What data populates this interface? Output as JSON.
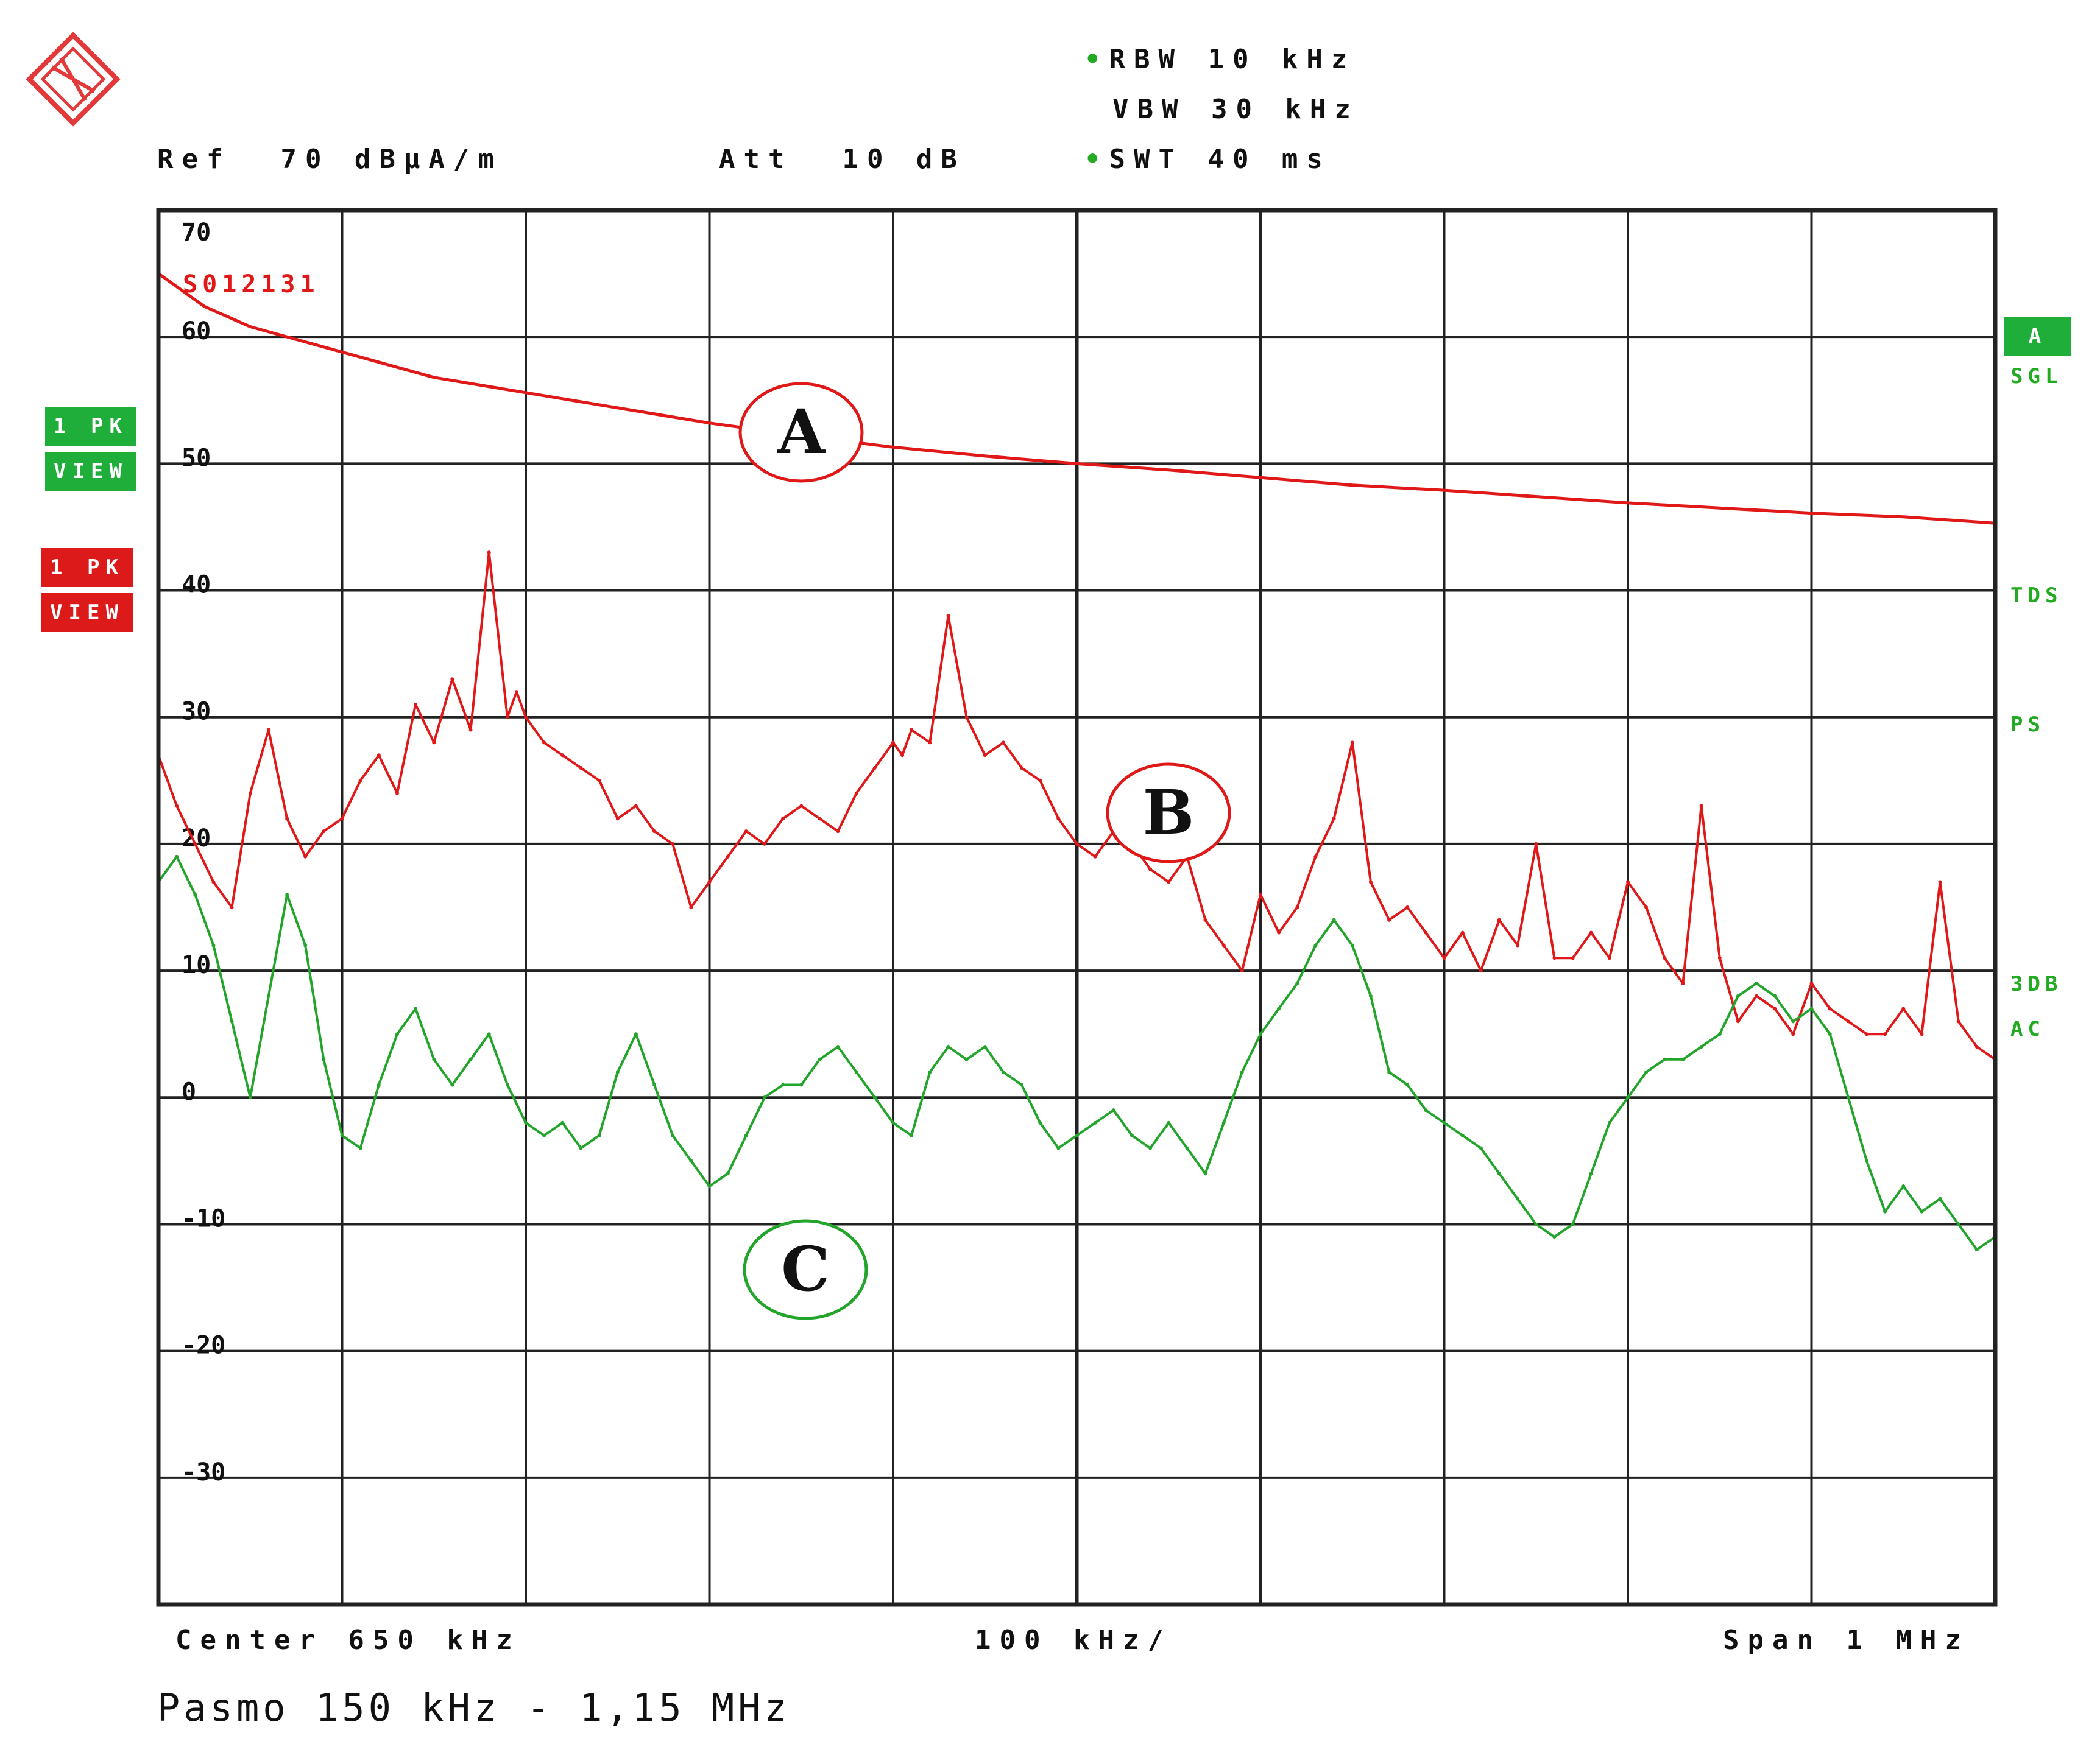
{
  "header": {
    "rbw": "RBW 10 kHz",
    "vbw": "VBW 30 kHz",
    "swt": "SWT 40 ms",
    "ref": "Ref  70 dBµA/m",
    "att": "Att  10 dB"
  },
  "footer": {
    "center": "Center 650 kHz",
    "div": "100 kHz/",
    "span": "Span 1 MHz",
    "caption": "Pasmo 150 kHz - 1,15 MHz"
  },
  "left_badges": {
    "green_line1": "1 PK",
    "green_line2": "VIEW",
    "red_line1": "1 PK",
    "red_line2": "VIEW"
  },
  "right_labels": {
    "a_badge": "A",
    "sgl": "SGL",
    "tds": "TDS",
    "ps": "PS",
    "db3": "3DB",
    "ac": "AC"
  },
  "colors": {
    "red": "#e01818",
    "light_red": "#f07a6a",
    "green": "#22a52a",
    "grid": "#222222",
    "badge_green": "#1fae3a",
    "badge_red": "#dd1a1a"
  },
  "chart_data": {
    "type": "line",
    "x_unit": "kHz",
    "xlim": [
      150,
      1150
    ],
    "ylim": [
      -40,
      70
    ],
    "ylabel": "",
    "xlabel": "",
    "grid": true,
    "y_tick_labels": [
      "70",
      "60",
      "50",
      "40",
      "30",
      "20",
      "10",
      "0",
      "-10",
      "-20",
      "-30"
    ],
    "limit_label": "S012131",
    "annotations": [
      "A",
      "B",
      "C"
    ],
    "series": [
      {
        "color": "#e01818",
        "x": [
          150,
          175,
          200,
          250,
          300,
          350,
          400,
          450,
          500,
          550,
          600,
          650,
          700,
          750,
          800,
          850,
          900,
          950,
          1000,
          1050,
          1100,
          1150
        ],
        "y": [
          65,
          62.4,
          60.8,
          58.8,
          56.8,
          55.6,
          54.4,
          53.2,
          52.2,
          51.3,
          50.6,
          50.0,
          49.5,
          48.9,
          48.3,
          47.9,
          47.4,
          46.9,
          46.5,
          46.1,
          45.8,
          45.3
        ]
      },
      {
        "color": "#e01818",
        "x": [
          150,
          160,
          170,
          180,
          190,
          200,
          210,
          220,
          230,
          240,
          250,
          260,
          270,
          280,
          290,
          300,
          310,
          320,
          330,
          340,
          345,
          350,
          360,
          370,
          380,
          390,
          400,
          410,
          420,
          430,
          440,
          450,
          460,
          470,
          480,
          490,
          500,
          510,
          520,
          530,
          540,
          550,
          555,
          560,
          570,
          580,
          590,
          600,
          610,
          620,
          630,
          640,
          650,
          660,
          670,
          680,
          690,
          700,
          710,
          720,
          730,
          740,
          750,
          760,
          770,
          780,
          790,
          800,
          810,
          820,
          830,
          840,
          850,
          860,
          870,
          880,
          890,
          900,
          910,
          920,
          930,
          940,
          950,
          960,
          970,
          980,
          990,
          1000,
          1010,
          1020,
          1030,
          1040,
          1050,
          1060,
          1070,
          1080,
          1090,
          1100,
          1110,
          1120,
          1130,
          1140,
          1150
        ],
        "y": [
          27,
          23,
          20,
          17,
          15,
          24,
          29,
          22,
          19,
          21,
          22,
          25,
          27,
          24,
          31,
          28,
          33,
          29,
          43,
          30,
          32,
          30,
          28,
          27,
          26,
          25,
          22,
          23,
          21,
          20,
          15,
          17,
          19,
          21,
          20,
          22,
          23,
          22,
          21,
          24,
          26,
          28,
          27,
          29,
          28,
          38,
          30,
          27,
          28,
          26,
          25,
          22,
          20,
          19,
          21,
          20,
          18,
          17,
          19,
          14,
          12,
          10,
          16,
          13,
          15,
          19,
          22,
          28,
          17,
          14,
          15,
          13,
          11,
          13,
          10,
          14,
          12,
          20,
          11,
          11,
          13,
          11,
          17,
          15,
          11,
          9,
          23,
          11,
          6,
          8,
          7,
          5,
          9,
          7,
          6,
          5,
          5,
          7,
          5,
          17,
          6,
          4,
          3
        ]
      },
      {
        "color": "#22a52a",
        "x": [
          150,
          160,
          170,
          180,
          190,
          200,
          210,
          220,
          230,
          240,
          250,
          260,
          270,
          280,
          290,
          300,
          310,
          320,
          330,
          340,
          350,
          360,
          370,
          380,
          390,
          400,
          410,
          420,
          430,
          440,
          450,
          460,
          470,
          480,
          490,
          500,
          510,
          520,
          530,
          540,
          550,
          560,
          570,
          580,
          590,
          600,
          610,
          620,
          630,
          640,
          650,
          660,
          670,
          680,
          690,
          700,
          710,
          720,
          730,
          740,
          750,
          760,
          770,
          780,
          790,
          800,
          810,
          820,
          830,
          840,
          850,
          860,
          870,
          880,
          890,
          900,
          910,
          920,
          930,
          940,
          950,
          960,
          970,
          980,
          990,
          1000,
          1010,
          1020,
          1030,
          1040,
          1050,
          1060,
          1070,
          1080,
          1090,
          1100,
          1110,
          1120,
          1130,
          1140,
          1150
        ],
        "y": [
          17,
          19,
          16,
          12,
          6,
          0,
          8,
          16,
          12,
          3,
          -3,
          -4,
          1,
          5,
          7,
          3,
          1,
          3,
          5,
          1,
          -2,
          -3,
          -2,
          -4,
          -3,
          2,
          5,
          1,
          -3,
          -5,
          -7,
          -6,
          -3,
          0,
          1,
          1,
          3,
          4,
          2,
          0,
          -2,
          -3,
          2,
          4,
          3,
          4,
          2,
          1,
          -2,
          -4,
          -3,
          -2,
          -1,
          -3,
          -4,
          -2,
          -4,
          -6,
          -2,
          2,
          5,
          7,
          9,
          12,
          14,
          12,
          8,
          2,
          1,
          -1,
          -2,
          -3,
          -4,
          -6,
          -8,
          -10,
          -11,
          -10,
          -6,
          -2,
          0,
          2,
          3,
          3,
          4,
          5,
          8,
          9,
          8,
          6,
          7,
          5,
          0,
          -5,
          -9,
          -7,
          -9,
          -8,
          -10,
          -12,
          -11
        ]
      }
    ]
  }
}
